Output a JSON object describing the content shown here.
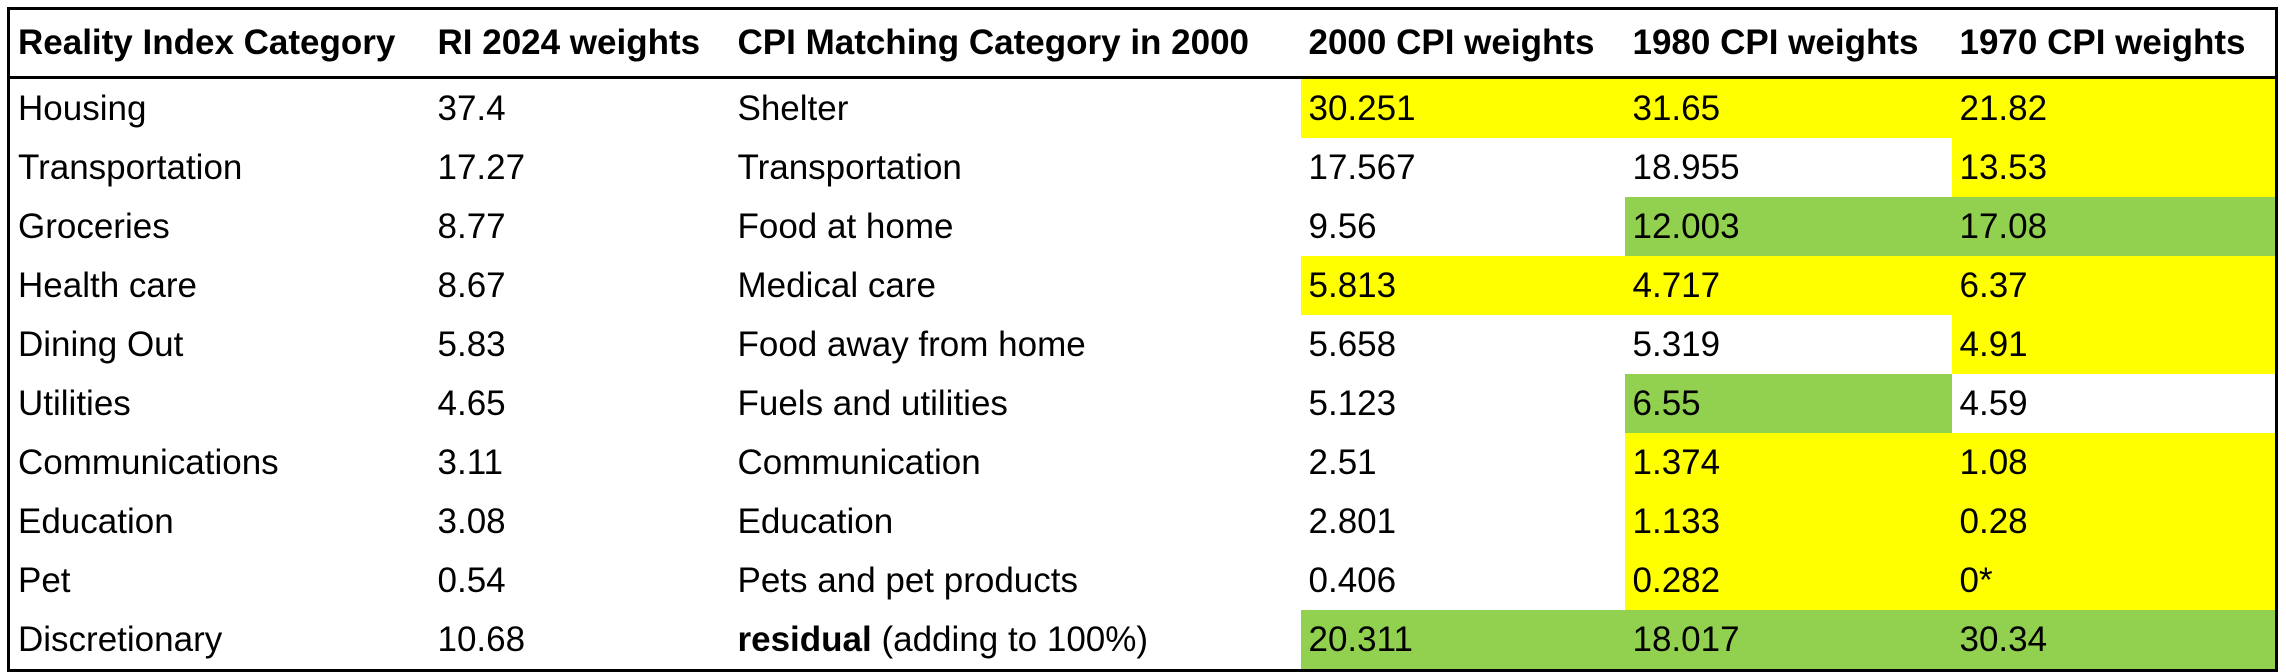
{
  "table": {
    "header": [
      "Reality Index Category",
      "RI 2024 weights",
      "CPI Matching Category in 2000",
      "2000 CPI weights",
      "1980 CPI weights",
      "1970 CPI weights"
    ],
    "rows": [
      [
        "Housing",
        "37.4",
        "Shelter",
        "30.251",
        "31.65",
        "21.82"
      ],
      [
        "Transportation",
        "17.27",
        "Transportation",
        "17.567",
        "18.955",
        "13.53"
      ],
      [
        "Groceries",
        "8.77",
        "Food at home",
        "9.56",
        "12.003",
        "17.08"
      ],
      [
        "Health care",
        "8.67",
        "Medical care",
        "5.813",
        "4.717",
        "6.37"
      ],
      [
        "Dining Out",
        "5.83",
        "Food away from home",
        "5.658",
        "5.319",
        "4.91"
      ],
      [
        "Utilities",
        "4.65",
        "Fuels and utilities",
        "5.123",
        "6.55",
        "4.59"
      ],
      [
        "Communications",
        "3.11",
        "Communication",
        "2.51",
        "1.374",
        "1.08"
      ],
      [
        "Education",
        "3.08",
        "Education",
        "2.801",
        "1.133",
        "0.28"
      ],
      [
        "Pet",
        "0.54",
        "Pets and pet products",
        "0.406",
        "0.282",
        "0*"
      ],
      [
        "Discretionary",
        "10.68",
        [
          "residual",
          "(adding to 100%)"
        ],
        "20.311",
        "18.017",
        "30.34"
      ]
    ],
    "fills": [
      [
        null,
        null,
        null,
        "#ffff00",
        "#ffff00",
        "#ffff00"
      ],
      [
        null,
        null,
        null,
        null,
        null,
        "#ffff00"
      ],
      [
        null,
        null,
        null,
        null,
        "#92d050",
        "#92d050"
      ],
      [
        null,
        null,
        null,
        "#ffff00",
        "#ffff00",
        "#ffff00"
      ],
      [
        null,
        null,
        null,
        null,
        null,
        "#ffff00"
      ],
      [
        null,
        null,
        null,
        null,
        "#92d050",
        null
      ],
      [
        null,
        null,
        null,
        null,
        "#ffff00",
        "#ffff00"
      ],
      [
        null,
        null,
        null,
        null,
        "#ffff00",
        "#ffff00"
      ],
      [
        null,
        null,
        null,
        null,
        "#ffff00",
        "#ffff00"
      ],
      [
        null,
        null,
        null,
        "#92d050",
        "#92d050",
        "#92d050"
      ]
    ]
  }
}
